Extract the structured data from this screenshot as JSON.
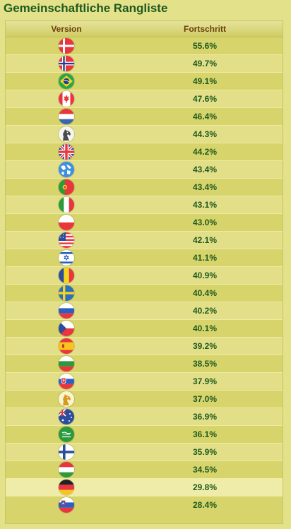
{
  "title": "Gemeinschaftliche Rangliste",
  "columns": {
    "version": "Version",
    "progress": "Fortschritt"
  },
  "rows": [
    {
      "flag": "denmark-flag-icon",
      "progress": "55.6%"
    },
    {
      "flag": "norway-flag-icon",
      "progress": "49.7%"
    },
    {
      "flag": "brazil-flag-icon",
      "progress": "49.1%"
    },
    {
      "flag": "canada-flag-icon",
      "progress": "47.6%"
    },
    {
      "flag": "netherlands-flag-icon",
      "progress": "46.4%"
    },
    {
      "flag": "classic-horse-icon",
      "progress": "44.3%"
    },
    {
      "flag": "uk-flag-icon",
      "progress": "44.2%"
    },
    {
      "flag": "world-globe-icon",
      "progress": "43.4%"
    },
    {
      "flag": "portugal-flag-icon",
      "progress": "43.4%"
    },
    {
      "flag": "italy-flag-icon",
      "progress": "43.1%"
    },
    {
      "flag": "poland-flag-icon",
      "progress": "43.0%"
    },
    {
      "flag": "usa-flag-icon",
      "progress": "42.1%"
    },
    {
      "flag": "israel-flag-icon",
      "progress": "41.1%"
    },
    {
      "flag": "romania-flag-icon",
      "progress": "40.9%"
    },
    {
      "flag": "sweden-flag-icon",
      "progress": "40.4%"
    },
    {
      "flag": "russia-flag-icon",
      "progress": "40.2%"
    },
    {
      "flag": "czech-flag-icon",
      "progress": "40.1%"
    },
    {
      "flag": "spain-flag-icon",
      "progress": "39.2%"
    },
    {
      "flag": "bulgaria-flag-icon",
      "progress": "38.5%"
    },
    {
      "flag": "slovakia-flag-icon",
      "progress": "37.9%"
    },
    {
      "flag": "golden-horse-icon",
      "progress": "37.0%"
    },
    {
      "flag": "australia-flag-icon",
      "progress": "36.9%"
    },
    {
      "flag": "saudi-arabia-flag-icon",
      "progress": "36.1%"
    },
    {
      "flag": "finland-flag-icon",
      "progress": "35.9%"
    },
    {
      "flag": "hungary-flag-icon",
      "progress": "34.5%"
    },
    {
      "flag": "germany-flag-icon",
      "progress": "29.8%",
      "highlighted": true
    },
    {
      "flag": "slovenia-flag-icon",
      "progress": "28.4%"
    }
  ],
  "colors": {
    "title": "#1f5a1f",
    "header_text": "#6b3f0d",
    "background": "#e3e18a",
    "row_odd": "#d7d46c",
    "row_even": "#e2df88",
    "row_highlight": "#eeeca8"
  }
}
